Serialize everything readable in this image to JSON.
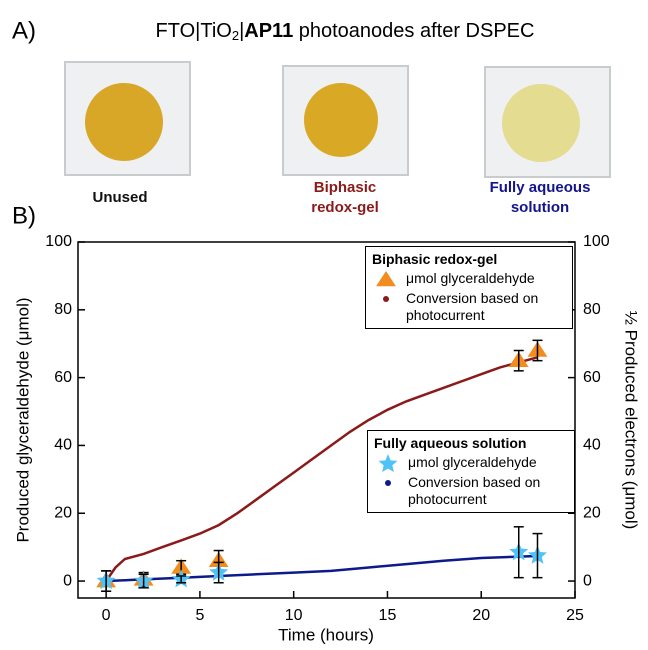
{
  "panel_a": {
    "label": "A)",
    "title_parts": [
      "FTO|TiO",
      "2",
      "|",
      "AP11",
      " photoanodes after DSPEC"
    ],
    "samples": [
      {
        "label": "Unused",
        "color": "#111111"
      },
      {
        "label": "Biphasic redox-gel",
        "color": "#8b1a1a"
      },
      {
        "label": "Fully aqueous solution",
        "color": "#14148c"
      }
    ]
  },
  "chart_data": {
    "type": "line",
    "panel_label": "B)",
    "x_label": "Time (hours)",
    "y_label": "Produced glyceraldehyde (μmol)",
    "y2_label": "½ Produced electrons (μmol)",
    "xlim": [
      -1.5,
      25
    ],
    "xticks": [
      0,
      5,
      10,
      15,
      20,
      25
    ],
    "ylim": [
      -5,
      100
    ],
    "yticks": [
      0,
      20,
      40,
      60,
      80,
      100
    ],
    "y2lim": [
      -5,
      100
    ],
    "y2ticks": [
      0,
      20,
      40,
      60,
      80,
      100
    ],
    "groups": [
      {
        "name": "Biphasic redox-gel",
        "series": [
          {
            "name": "μmol glyceraldehyde",
            "color": "#f28c1e",
            "marker": "triangle",
            "x": [
              0,
              2,
              4,
              6,
              22,
              23
            ],
            "values": [
              0,
              0.5,
              4,
              6,
              65,
              68
            ],
            "errors": [
              3,
              2,
              2,
              3,
              3,
              3
            ]
          },
          {
            "name": "Conversion based on photocurrent",
            "color": "#8b1a1a",
            "marker": "line",
            "axis": "y2",
            "x": [
              0,
              0.5,
              1,
              2,
              3,
              4,
              5,
              6,
              7,
              8,
              9,
              10,
              11,
              12,
              13,
              14,
              15,
              16,
              17,
              18,
              19,
              20,
              21,
              22,
              23
            ],
            "values": [
              0,
              4,
              6.5,
              8,
              10,
              12,
              14,
              16.5,
              20,
              24,
              28,
              32,
              36,
              40,
              44,
              47.5,
              50.5,
              53,
              55,
              57,
              59,
              61,
              63,
              64.5,
              66
            ]
          }
        ]
      },
      {
        "name": "Fully aqueous solution",
        "series": [
          {
            "name": "μmol glyceraldehyde",
            "color": "#4fc3f7",
            "marker": "star",
            "x": [
              0,
              2,
              4,
              6,
              22,
              23
            ],
            "values": [
              0,
              0,
              0.5,
              2.5,
              8.5,
              7.5
            ],
            "errors": [
              3,
              2,
              1,
              3,
              7.5,
              6.5
            ]
          },
          {
            "name": "Conversion based on photocurrent",
            "color": "#0d1a8c",
            "marker": "line",
            "axis": "y2",
            "x": [
              0,
              2,
              4,
              6,
              8,
              10,
              12,
              14,
              16,
              18,
              20,
              22,
              23
            ],
            "values": [
              0,
              0.5,
              1,
              1.5,
              2,
              2.5,
              3,
              4,
              5,
              6,
              6.8,
              7.2,
              7.4
            ]
          }
        ]
      }
    ]
  }
}
